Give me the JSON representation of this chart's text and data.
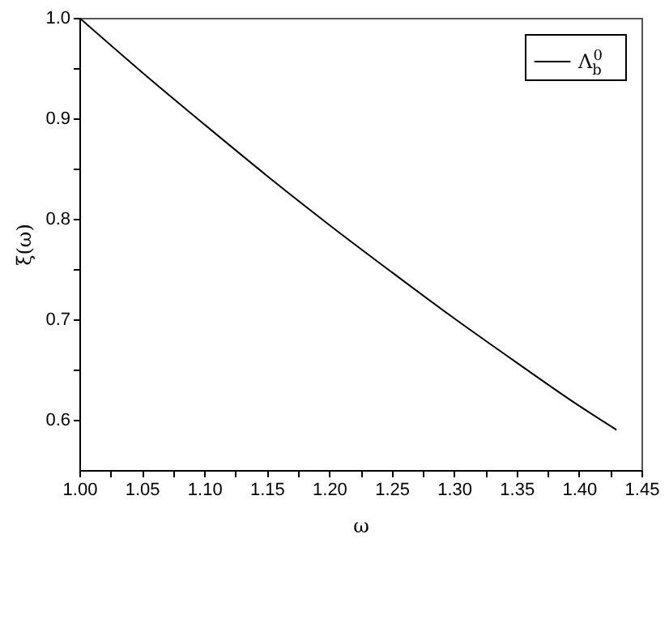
{
  "chart_data": {
    "type": "line",
    "xlabel": "ω",
    "ylabel": "ξ(ω)",
    "x": [
      1.0,
      1.05,
      1.1,
      1.15,
      1.2,
      1.25,
      1.3,
      1.35,
      1.4,
      1.43
    ],
    "series": [
      {
        "name": "Λ$_{b}$$^{0}$",
        "color": "#000000",
        "values": [
          1.0,
          0.946,
          0.894,
          0.843,
          0.794,
          0.747,
          0.701,
          0.657,
          0.614,
          0.59
        ]
      }
    ],
    "xlim": [
      1.0,
      1.45
    ],
    "ylim": [
      0.55,
      1.0
    ],
    "xticks": [
      {
        "value": 1.0,
        "label": "1.00"
      },
      {
        "value": 1.025,
        "label": null
      },
      {
        "value": 1.05,
        "label": "1.05"
      },
      {
        "value": 1.075,
        "label": null
      },
      {
        "value": 1.1,
        "label": "1.10"
      },
      {
        "value": 1.125,
        "label": null
      },
      {
        "value": 1.15,
        "label": "1.15"
      },
      {
        "value": 1.175,
        "label": null
      },
      {
        "value": 1.2,
        "label": "1.20"
      },
      {
        "value": 1.225,
        "label": null
      },
      {
        "value": 1.25,
        "label": "1.25"
      },
      {
        "value": 1.275,
        "label": null
      },
      {
        "value": 1.3,
        "label": "1.30"
      },
      {
        "value": 1.325,
        "label": null
      },
      {
        "value": 1.35,
        "label": "1.35"
      },
      {
        "value": 1.375,
        "label": null
      },
      {
        "value": 1.4,
        "label": "1.40"
      },
      {
        "value": 1.425,
        "label": null
      },
      {
        "value": 1.45,
        "label": "1.45"
      }
    ],
    "yticks": [
      {
        "value": 0.6,
        "label": "0.6"
      },
      {
        "value": 0.65,
        "label": null
      },
      {
        "value": 0.7,
        "label": "0.7"
      },
      {
        "value": 0.75,
        "label": null
      },
      {
        "value": 0.8,
        "label": "0.8"
      },
      {
        "value": 0.85,
        "label": null
      },
      {
        "value": 0.9,
        "label": "0.9"
      },
      {
        "value": 0.95,
        "label": null
      },
      {
        "value": 1.0,
        "label": "1.0"
      }
    ],
    "legend": "top right"
  }
}
